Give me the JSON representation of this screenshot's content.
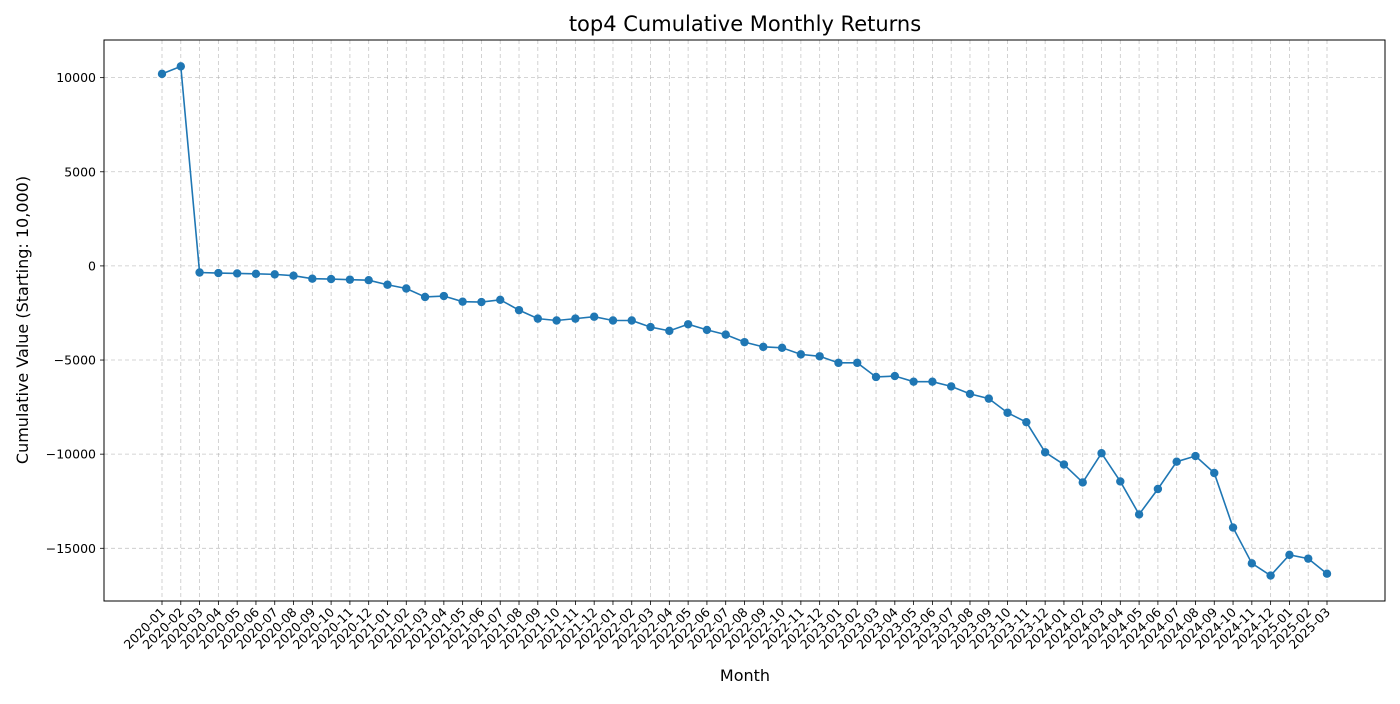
{
  "chart_data": {
    "type": "line",
    "title": "top4 Cumulative Monthly Returns",
    "xlabel": "Month",
    "ylabel": "Cumulative Value (Starting: 10,000)",
    "ylim": [
      -17800,
      12000
    ],
    "yticks": [
      10000,
      5000,
      0,
      -5000,
      -10000,
      -15000
    ],
    "ytick_labels": [
      "10000",
      "5000",
      "0",
      "−5000",
      "−10000",
      "−15000"
    ],
    "grid": true,
    "color": "#1f77b4",
    "x": [
      "2020-01",
      "2020-02",
      "2020-03",
      "2020-04",
      "2020-05",
      "2020-06",
      "2020-07",
      "2020-08",
      "2020-09",
      "2020-10",
      "2020-11",
      "2020-12",
      "2021-01",
      "2021-02",
      "2021-03",
      "2021-04",
      "2021-05",
      "2021-06",
      "2021-07",
      "2021-08",
      "2021-09",
      "2021-10",
      "2021-11",
      "2021-12",
      "2022-01",
      "2022-02",
      "2022-03",
      "2022-04",
      "2022-05",
      "2022-06",
      "2022-07",
      "2022-08",
      "2022-09",
      "2022-10",
      "2022-11",
      "2022-12",
      "2023-01",
      "2023-02",
      "2023-03",
      "2023-04",
      "2023-05",
      "2023-06",
      "2023-07",
      "2023-08",
      "2023-09",
      "2023-10",
      "2023-11",
      "2023-12",
      "2024-01",
      "2024-02",
      "2024-03",
      "2024-04",
      "2024-05",
      "2024-06",
      "2024-07",
      "2024-08",
      "2024-09",
      "2024-10",
      "2024-11",
      "2024-12",
      "2025-01",
      "2025-02",
      "2025-03"
    ],
    "series": [
      {
        "values": [
          10200,
          10600,
          -350,
          -380,
          -400,
          -420,
          -450,
          -520,
          -680,
          -700,
          -730,
          -760,
          -1000,
          -1200,
          -1650,
          -1600,
          -1900,
          -1920,
          -1800,
          -2350,
          -2800,
          -2900,
          -2800,
          -2700,
          -2900,
          -2900,
          -3250,
          -3450,
          -3100,
          -3400,
          -3650,
          -4050,
          -4300,
          -4350,
          -4700,
          -4800,
          -5150,
          -5150,
          -5900,
          -5850,
          -6150,
          -6150,
          -6400,
          -6800,
          -7050,
          -7800,
          -8300,
          -9900,
          -10550,
          -11500,
          -9950,
          -11450,
          -13200,
          -11850,
          -10400,
          -10100,
          -11000,
          -13900,
          -15800,
          -16450,
          -15350,
          -15550,
          -16350
        ]
      }
    ]
  }
}
